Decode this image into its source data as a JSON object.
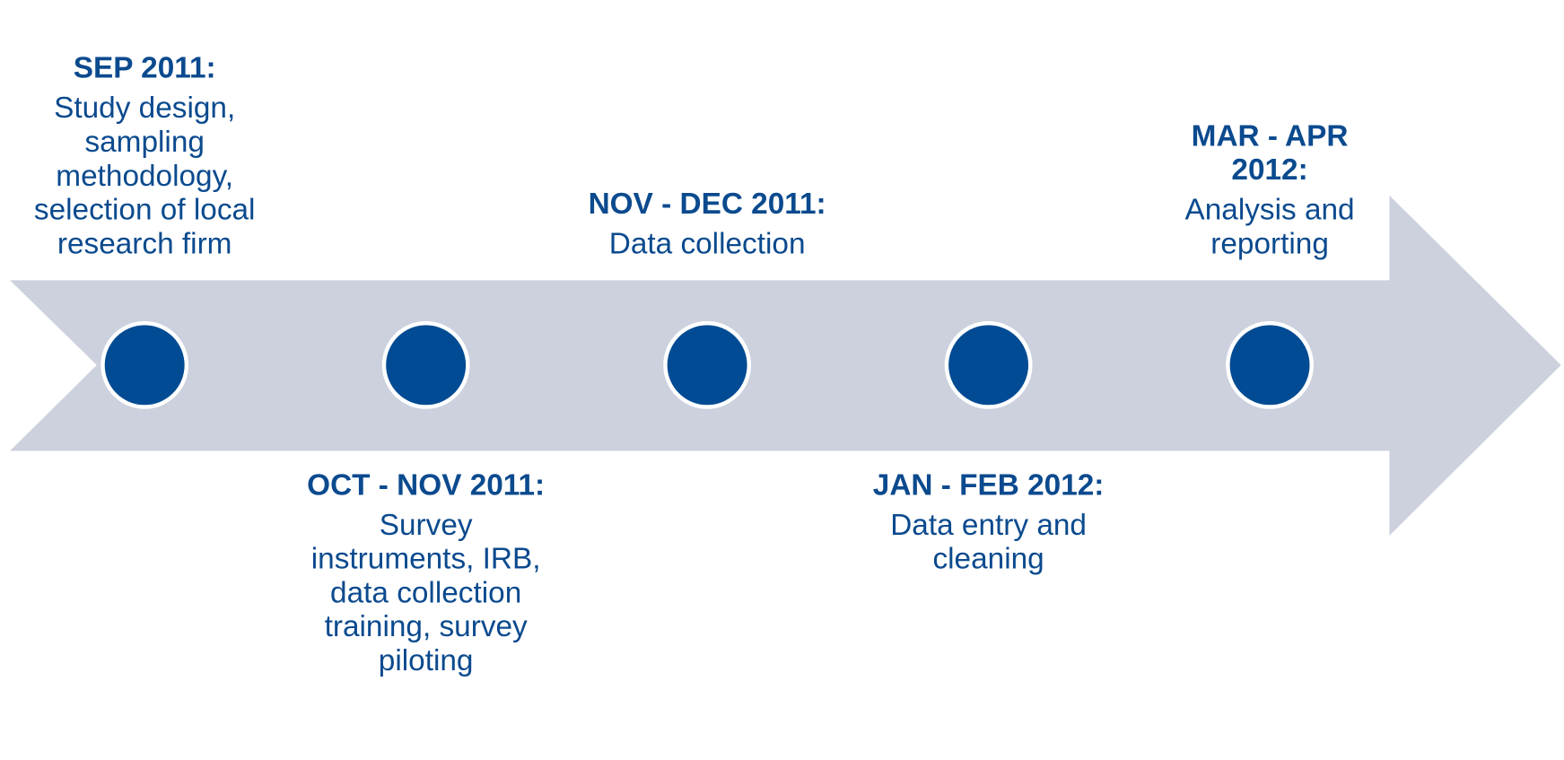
{
  "items": [
    {
      "date": "SEP 2011:",
      "text": "Study design, sampling methodology, selection of local research firm"
    },
    {
      "date": "OCT - NOV 2011:",
      "text": "Survey instruments, IRB, data collection training, survey piloting"
    },
    {
      "date": "NOV - DEC 2011:",
      "text": "Data collection"
    },
    {
      "date": "JAN - FEB 2012:",
      "text": "Data entry and cleaning"
    },
    {
      "date": "MAR - APR 2012:",
      "text": "Analysis and reporting"
    }
  ]
}
